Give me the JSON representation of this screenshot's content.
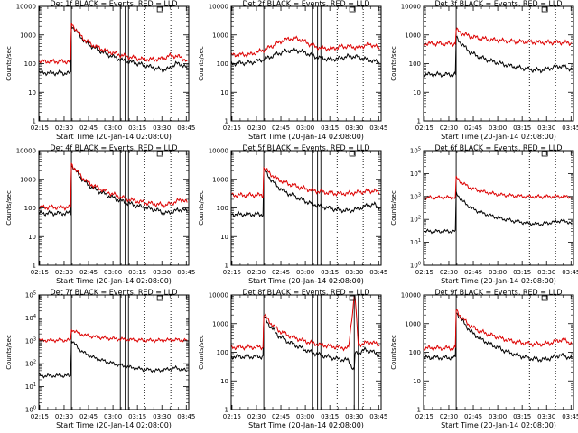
{
  "chart_data": [
    {
      "type": "line",
      "title": "Det 1f BLACK = Events, RED = LLD",
      "xlabel": "Start Time (20-Jan-14 02:08:00)",
      "ylabel": "Counts/sec",
      "x_ticks": [
        "02:15",
        "02:30",
        "02:45",
        "03:00",
        "03:15",
        "03:30",
        "03:45"
      ],
      "y_ticks": [
        "1",
        "10",
        "100",
        "1000",
        "10000"
      ],
      "yscale": "log",
      "ylim": [
        1,
        10000
      ],
      "xlim_min": [
        8,
        100
      ],
      "vlines_solid": [
        28,
        58,
        61,
        63
      ],
      "vlines_dotted": [
        73,
        89
      ],
      "series": [
        {
          "color": "#000000",
          "x": [
            8,
            27.5,
            28,
            32,
            37,
            43,
            50,
            56,
            60,
            66,
            72,
            78,
            84,
            88,
            92,
            96,
            99
          ],
          "y": [
            48,
            46,
            2200,
            1150,
            520,
            330,
            210,
            155,
            125,
            108,
            90,
            73,
            60,
            66,
            100,
            92,
            70
          ]
        },
        {
          "color": "#dd0000",
          "x": [
            8,
            27.5,
            28,
            32,
            37,
            43,
            50,
            56,
            60,
            66,
            72,
            78,
            84,
            88,
            92,
            96,
            99
          ],
          "y": [
            120,
            118,
            2500,
            1250,
            600,
            390,
            270,
            215,
            188,
            160,
            142,
            140,
            148,
            185,
            185,
            160,
            120
          ]
        }
      ]
    },
    {
      "type": "line",
      "title": "Det 2f BLACK = Events, RED = LLD",
      "xlabel": "Start Time (20-Jan-14 02:08:00)",
      "ylabel": "Counts/sec",
      "x_ticks": [
        "02:15",
        "02:30",
        "02:45",
        "03:00",
        "03:15",
        "03:30",
        "03:45"
      ],
      "y_ticks": [
        "1",
        "10",
        "100",
        "1000",
        "10000"
      ],
      "yscale": "log",
      "ylim": [
        1,
        10000
      ],
      "xlim_min": [
        8,
        100
      ],
      "vlines_solid": [
        28,
        58,
        61,
        63
      ],
      "vlines_dotted": [
        73,
        89
      ],
      "series": [
        {
          "color": "#000000",
          "x": [
            8,
            20,
            28,
            34,
            40,
            46,
            51,
            56,
            60,
            65,
            70,
            75,
            80,
            86,
            92,
            96,
            99
          ],
          "y": [
            100,
            108,
            140,
            190,
            260,
            300,
            270,
            210,
            170,
            150,
            140,
            155,
            180,
            170,
            135,
            120,
            110
          ]
        },
        {
          "color": "#dd0000",
          "x": [
            8,
            20,
            28,
            34,
            40,
            46,
            51,
            56,
            60,
            65,
            70,
            75,
            80,
            86,
            92,
            96,
            99
          ],
          "y": [
            200,
            210,
            300,
            430,
            650,
            780,
            680,
            480,
            380,
            340,
            330,
            390,
            400,
            360,
            470,
            430,
            310
          ]
        }
      ]
    },
    {
      "type": "line",
      "title": "Det 3f BLACK = Events, RED = LLD",
      "xlabel": "Start Time (20-Jan-14 02:08:00)",
      "ylabel": "Counts/sec",
      "x_ticks": [
        "02:15",
        "02:30",
        "02:45",
        "03:00",
        "03:15",
        "03:30",
        "03:45"
      ],
      "y_ticks": [
        "1",
        "10",
        "100",
        "1000",
        "10000"
      ],
      "yscale": "log",
      "ylim": [
        1,
        10000
      ],
      "xlim_min": [
        8,
        100
      ],
      "vlines_solid": [
        28
      ],
      "vlines_dotted": [
        73,
        89
      ],
      "series": [
        {
          "color": "#000000",
          "x": [
            8,
            27.5,
            28,
            32,
            37,
            43,
            50,
            56,
            62,
            68,
            74,
            80,
            86,
            92,
            96,
            99
          ],
          "y": [
            42,
            42,
            820,
            440,
            240,
            165,
            120,
            98,
            82,
            70,
            62,
            58,
            70,
            82,
            72,
            62
          ]
        },
        {
          "color": "#dd0000",
          "x": [
            8,
            27.5,
            28,
            32,
            37,
            43,
            50,
            56,
            62,
            68,
            74,
            80,
            86,
            92,
            96,
            99
          ],
          "y": [
            500,
            500,
            1500,
            1100,
            880,
            760,
            680,
            630,
            600,
            575,
            560,
            550,
            545,
            545,
            530,
            510
          ]
        }
      ]
    },
    {
      "type": "line",
      "title": "Det 4f BLACK = Events, RED = LLD",
      "xlabel": "Start Time (20-Jan-14 02:08:00)",
      "ylabel": "Counts/sec",
      "x_ticks": [
        "02:15",
        "02:30",
        "02:45",
        "03:00",
        "03:15",
        "03:30",
        "03:45"
      ],
      "y_ticks": [
        "1",
        "10",
        "100",
        "1000",
        "10000"
      ],
      "yscale": "log",
      "ylim": [
        1,
        10000
      ],
      "xlim_min": [
        8,
        100
      ],
      "vlines_solid": [
        28,
        58,
        61,
        63
      ],
      "vlines_dotted": [
        73,
        89
      ],
      "series": [
        {
          "color": "#000000",
          "x": [
            8,
            27.5,
            28,
            32,
            37,
            43,
            50,
            56,
            62,
            68,
            74,
            80,
            86,
            92,
            96,
            99
          ],
          "y": [
            65,
            65,
            3200,
            1500,
            720,
            430,
            280,
            200,
            150,
            120,
            100,
            85,
            65,
            80,
            90,
            72
          ]
        },
        {
          "color": "#dd0000",
          "x": [
            8,
            27.5,
            28,
            32,
            37,
            43,
            50,
            56,
            62,
            68,
            74,
            80,
            86,
            92,
            96,
            99
          ],
          "y": [
            105,
            105,
            3400,
            1700,
            860,
            540,
            360,
            265,
            205,
            172,
            150,
            135,
            125,
            165,
            200,
            155
          ]
        }
      ]
    },
    {
      "type": "line",
      "title": "Det 5f BLACK = Events, RED = LLD",
      "xlabel": "Start Time (20-Jan-14 02:08:00)",
      "ylabel": "Counts/sec",
      "x_ticks": [
        "02:15",
        "02:30",
        "02:45",
        "03:00",
        "03:15",
        "03:30",
        "03:45"
      ],
      "y_ticks": [
        "1",
        "10",
        "100",
        "1000",
        "10000"
      ],
      "yscale": "log",
      "ylim": [
        1,
        10000
      ],
      "xlim_min": [
        8,
        100
      ],
      "vlines_solid": [
        28,
        58,
        61,
        63
      ],
      "vlines_dotted": [
        73,
        89
      ],
      "series": [
        {
          "color": "#000000",
          "x": [
            8,
            27.5,
            28,
            32,
            37,
            43,
            50,
            56,
            62,
            68,
            74,
            80,
            86,
            92,
            96,
            99
          ],
          "y": [
            60,
            60,
            2200,
            1050,
            520,
            320,
            210,
            150,
            118,
            98,
            85,
            80,
            92,
            125,
            130,
            100
          ]
        },
        {
          "color": "#dd0000",
          "x": [
            8,
            27.5,
            28,
            32,
            37,
            43,
            50,
            56,
            62,
            68,
            74,
            80,
            86,
            92,
            96,
            99
          ],
          "y": [
            280,
            280,
            2500,
            1550,
            980,
            700,
            530,
            430,
            370,
            335,
            315,
            320,
            350,
            380,
            400,
            330
          ]
        }
      ]
    },
    {
      "type": "line",
      "title": "Det 6f BLACK = Events, RED = LLD",
      "xlabel": "Start Time (20-Jan-14 02:08:00)",
      "ylabel": "Counts/sec",
      "x_ticks": [
        "02:15",
        "02:30",
        "02:45",
        "03:00",
        "03:15",
        "03:30",
        "03:45"
      ],
      "y_ticks": [
        "10^0",
        "10^1",
        "10^2",
        "10^3",
        "10^4",
        "10^5"
      ],
      "yscale": "log",
      "ylim": [
        1,
        100000
      ],
      "xlim_min": [
        8,
        100
      ],
      "vlines_solid": [
        28
      ],
      "vlines_dotted": [
        73,
        89
      ],
      "series": [
        {
          "color": "#000000",
          "x": [
            8,
            27.5,
            28,
            32,
            37,
            43,
            50,
            56,
            62,
            68,
            74,
            80,
            86,
            92,
            96,
            99
          ],
          "y": [
            30,
            30,
            1400,
            620,
            320,
            200,
            140,
            108,
            88,
            75,
            66,
            62,
            72,
            88,
            80,
            68
          ]
        },
        {
          "color": "#dd0000",
          "x": [
            8,
            27.5,
            28,
            32,
            37,
            43,
            50,
            56,
            62,
            68,
            74,
            80,
            86,
            92,
            96,
            99
          ],
          "y": [
            900,
            900,
            6500,
            3800,
            2300,
            1700,
            1350,
            1180,
            1080,
            1020,
            990,
            980,
            990,
            1000,
            980,
            940
          ]
        }
      ]
    },
    {
      "type": "line",
      "title": "Det 7f BLACK = Events, RED = LLD",
      "xlabel": "Start Time (20-Jan-14 02:08:00)",
      "ylabel": "Counts/sec",
      "x_ticks": [
        "02:15",
        "02:30",
        "02:45",
        "03:00",
        "03:15",
        "03:30",
        "03:45"
      ],
      "y_ticks": [
        "10^0",
        "10^1",
        "10^2",
        "10^3",
        "10^4",
        "10^5"
      ],
      "yscale": "log",
      "ylim": [
        1,
        100000
      ],
      "xlim_min": [
        8,
        100
      ],
      "vlines_solid": [
        28,
        58,
        61,
        63
      ],
      "vlines_dotted": [
        73,
        89
      ],
      "series": [
        {
          "color": "#000000",
          "x": [
            8,
            27.5,
            28,
            32,
            37,
            43,
            50,
            56,
            62,
            68,
            74,
            80,
            86,
            92,
            96,
            99
          ],
          "y": [
            30,
            30,
            1100,
            480,
            260,
            170,
            120,
            92,
            74,
            62,
            55,
            50,
            55,
            65,
            56,
            48
          ]
        },
        {
          "color": "#dd0000",
          "x": [
            8,
            27.5,
            28,
            32,
            37,
            43,
            50,
            56,
            62,
            68,
            74,
            80,
            86,
            92,
            96,
            99
          ],
          "y": [
            1050,
            1050,
            3200,
            2200,
            1700,
            1450,
            1300,
            1200,
            1130,
            1080,
            1050,
            1040,
            1060,
            1100,
            1080,
            1040
          ]
        }
      ]
    },
    {
      "type": "line",
      "title": "Det 8f BLACK = Events, RED = LLD",
      "xlabel": "Start Time (20-Jan-14 02:08:00)",
      "ylabel": "Counts/sec",
      "x_ticks": [
        "02:15",
        "02:30",
        "02:45",
        "03:00",
        "03:15",
        "03:30",
        "03:45"
      ],
      "y_ticks": [
        "1",
        "10",
        "100",
        "1000",
        "10000"
      ],
      "yscale": "log",
      "ylim": [
        1,
        10000
      ],
      "xlim_min": [
        8,
        100
      ],
      "vlines_solid": [
        28,
        58,
        61,
        63,
        83.5,
        86
      ],
      "vlines_dotted": [
        73,
        89
      ],
      "series": [
        {
          "color": "#000000",
          "x": [
            8,
            27.5,
            28,
            32,
            37,
            43,
            50,
            56,
            62,
            68,
            74,
            80,
            83.5,
            84,
            86,
            90,
            94,
            99
          ],
          "y": [
            70,
            70,
            1700,
            800,
            380,
            230,
            150,
            105,
            82,
            68,
            58,
            52,
            22,
            90,
            95,
            120,
            110,
            75
          ]
        },
        {
          "color": "#dd0000",
          "x": [
            8,
            27.5,
            28,
            32,
            37,
            43,
            50,
            56,
            62,
            68,
            74,
            80,
            83.5,
            84,
            86,
            90,
            94,
            99
          ],
          "y": [
            150,
            150,
            2100,
            1080,
            580,
            390,
            280,
            220,
            185,
            165,
            148,
            138,
            9000,
            9000,
            180,
            210,
            230,
            170
          ]
        }
      ]
    },
    {
      "type": "line",
      "title": "Det 9f BLACK = Events, RED = LLD",
      "xlabel": "Start Time (20-Jan-14 02:08:00)",
      "ylabel": "Counts/sec",
      "x_ticks": [
        "02:15",
        "02:30",
        "02:45",
        "03:00",
        "03:15",
        "03:30",
        "03:45"
      ],
      "y_ticks": [
        "1",
        "10",
        "100",
        "1000",
        "10000"
      ],
      "yscale": "log",
      "ylim": [
        1,
        10000
      ],
      "xlim_min": [
        8,
        100
      ],
      "vlines_solid": [
        28
      ],
      "vlines_dotted": [
        73,
        89
      ],
      "series": [
        {
          "color": "#000000",
          "x": [
            8,
            27.5,
            28,
            32,
            37,
            43,
            50,
            56,
            62,
            68,
            74,
            80,
            86,
            92,
            96,
            99
          ],
          "y": [
            65,
            65,
            2500,
            1200,
            520,
            290,
            180,
            125,
            92,
            72,
            60,
            55,
            62,
            80,
            70,
            60
          ]
        },
        {
          "color": "#dd0000",
          "x": [
            8,
            27.5,
            28,
            32,
            37,
            43,
            50,
            56,
            62,
            68,
            74,
            80,
            86,
            92,
            96,
            99
          ],
          "y": [
            140,
            140,
            2900,
            1500,
            800,
            530,
            390,
            300,
            250,
            215,
            195,
            190,
            210,
            270,
            250,
            190
          ]
        }
      ]
    }
  ]
}
